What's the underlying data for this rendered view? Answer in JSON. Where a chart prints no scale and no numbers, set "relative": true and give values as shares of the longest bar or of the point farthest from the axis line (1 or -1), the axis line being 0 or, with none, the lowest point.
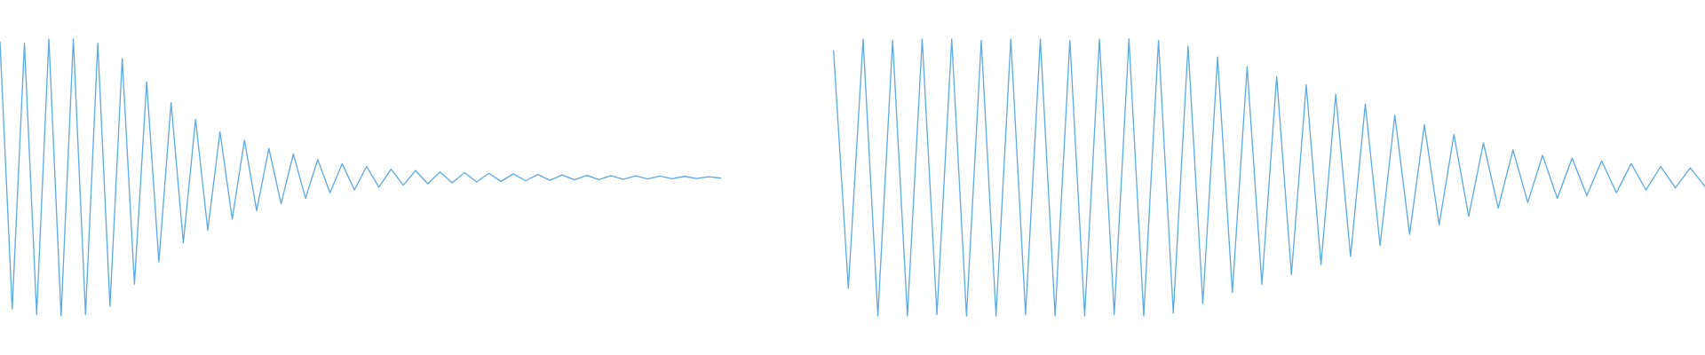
{
  "chart_data": [
    {
      "type": "line",
      "relative": true,
      "categories": [
        null,
        null,
        null,
        null,
        null,
        null,
        null,
        null,
        null,
        null,
        null,
        null,
        null,
        null,
        null,
        null,
        null,
        null,
        null,
        null,
        null,
        null,
        null,
        null,
        null,
        null,
        null,
        null,
        null,
        null,
        null,
        null,
        null,
        null,
        null,
        null,
        null,
        null,
        null,
        null,
        null,
        null,
        null,
        null,
        null,
        null,
        null,
        null,
        null,
        null,
        null,
        null,
        null,
        null,
        null,
        null,
        null,
        null,
        null,
        null
      ],
      "series": [
        {
          "color": "#5dabe2",
          "values": [
            0.99,
            0.025,
            0.985,
            0.005,
            1.0,
            0,
            1.0,
            0.005,
            0.985,
            0.035,
            0.93,
            0.115,
            0.845,
            0.195,
            0.77,
            0.265,
            0.71,
            0.31,
            0.665,
            0.35,
            0.635,
            0.38,
            0.605,
            0.405,
            0.585,
            0.425,
            0.565,
            0.445,
            0.55,
            0.455,
            0.54,
            0.465,
            0.53,
            0.4725,
            0.525,
            0.4775,
            0.52,
            0.481,
            0.5175,
            0.484,
            0.515,
            0.486,
            0.513,
            0.488,
            0.511,
            0.49,
            0.509,
            0.4915,
            0.508,
            0.4925,
            0.507,
            0.4935,
            0.506,
            0.4945,
            0.505,
            0.4955,
            0.504,
            0.4965,
            0.503,
            0.4975
          ]
        }
      ]
    },
    {
      "type": "line",
      "relative": true,
      "categories": [
        null,
        null,
        null,
        null,
        null,
        null,
        null,
        null,
        null,
        null,
        null,
        null,
        null,
        null,
        null,
        null,
        null,
        null,
        null,
        null,
        null,
        null,
        null,
        null,
        null,
        null,
        null,
        null,
        null,
        null,
        null,
        null,
        null,
        null,
        null,
        null,
        null,
        null,
        null,
        null,
        null,
        null,
        null,
        null,
        null,
        null,
        null,
        null,
        null,
        null,
        null,
        null,
        null,
        null,
        null,
        null,
        null,
        null,
        null,
        null
      ],
      "series": [
        {
          "color": "#5dabe2",
          "values": [
            0.96,
            0.1,
            1.0,
            0,
            0.995,
            0,
            1.0,
            0.005,
            1.0,
            0,
            0.995,
            0,
            1.0,
            0.005,
            1.0,
            0,
            0.995,
            0,
            1.0,
            0.005,
            1.0,
            0,
            0.995,
            0.01,
            0.975,
            0.045,
            0.935,
            0.085,
            0.9,
            0.115,
            0.865,
            0.15,
            0.835,
            0.185,
            0.8,
            0.215,
            0.765,
            0.255,
            0.725,
            0.295,
            0.69,
            0.33,
            0.655,
            0.36,
            0.625,
            0.39,
            0.6,
            0.41,
            0.58,
            0.425,
            0.57,
            0.435,
            0.56,
            0.445,
            0.55,
            0.455,
            0.54,
            0.4625,
            0.535,
            0.4675
          ]
        }
      ]
    }
  ]
}
